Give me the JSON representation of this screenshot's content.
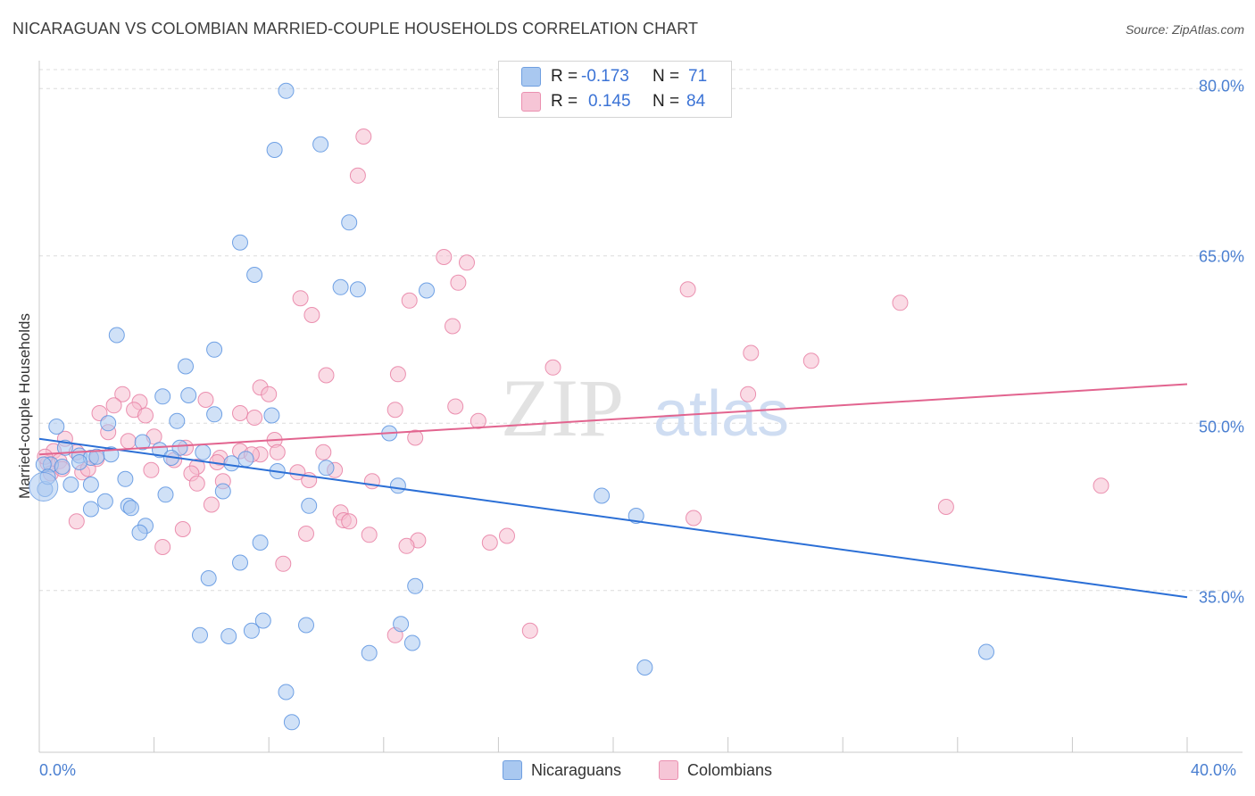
{
  "header": {
    "title": "NICARAGUAN VS COLOMBIAN MARRIED-COUPLE HOUSEHOLDS CORRELATION CHART",
    "source": "Source: ZipAtlas.com"
  },
  "watermark": {
    "zip": "ZIP",
    "atlas": "atlas"
  },
  "colors": {
    "blue_fill": "#a9c8f0",
    "blue_stroke": "#5b93e0",
    "blue_line": "#2b6fd6",
    "pink_fill": "#f6bdd0",
    "pink_stroke": "#e87fa3",
    "pink_line": "#e2648f",
    "axis_label": "#4a7fd1",
    "grid": "#dcdcdc"
  },
  "legend": {
    "rows": [
      {
        "r_label": "R =",
        "r_value": "-0.173",
        "n_label": "N =",
        "n_value": "71"
      },
      {
        "r_label": "R =",
        "r_value": "0.145",
        "n_label": "N =",
        "n_value": "84"
      }
    ]
  },
  "bottom_legend": {
    "series1": "Nicaraguans",
    "series2": "Colombians"
  },
  "chart_data": {
    "type": "scatter",
    "title": "NICARAGUAN VS COLOMBIAN MARRIED-COUPLE HOUSEHOLDS CORRELATION CHART",
    "xlabel": "",
    "ylabel": "Married-couple Households",
    "xlim": [
      0,
      40
    ],
    "ylim": [
      20.5,
      82.5
    ],
    "x_tick_labels": {
      "min": "0.0%",
      "max": "40.0%"
    },
    "y_ticks": [
      {
        "value": 35,
        "label": "35.0%"
      },
      {
        "value": 50,
        "label": "50.0%"
      },
      {
        "value": 65,
        "label": "65.0%"
      },
      {
        "value": 80,
        "label": "80.0%"
      }
    ],
    "x_minor_ticks": [
      4,
      8,
      12,
      16,
      20,
      24,
      28,
      32,
      36,
      40
    ],
    "grid": true,
    "series": [
      {
        "name": "Nicaraguans",
        "r": -0.173,
        "n": 71,
        "trend": {
          "x": [
            0,
            40
          ],
          "y": [
            48.6,
            34.4
          ]
        },
        "points": [
          [
            8.6,
            79.8
          ],
          [
            8.2,
            74.5
          ],
          [
            9.8,
            75.0
          ],
          [
            10.8,
            68.0
          ],
          [
            7.0,
            66.2
          ],
          [
            7.5,
            63.3
          ],
          [
            10.5,
            62.2
          ],
          [
            11.1,
            62.0
          ],
          [
            13.5,
            61.9
          ],
          [
            2.7,
            57.9
          ],
          [
            6.1,
            56.6
          ],
          [
            5.1,
            55.1
          ],
          [
            5.2,
            52.5
          ],
          [
            4.3,
            52.4
          ],
          [
            6.1,
            50.8
          ],
          [
            4.8,
            50.2
          ],
          [
            8.1,
            50.7
          ],
          [
            0.6,
            49.7
          ],
          [
            12.2,
            49.1
          ],
          [
            2.4,
            50.0
          ],
          [
            3.6,
            48.3
          ],
          [
            4.2,
            47.6
          ],
          [
            4.9,
            47.8
          ],
          [
            5.7,
            47.4
          ],
          [
            0.9,
            47.8
          ],
          [
            1.4,
            47.1
          ],
          [
            2.5,
            47.2
          ],
          [
            1.8,
            46.9
          ],
          [
            4.6,
            46.9
          ],
          [
            6.7,
            46.4
          ],
          [
            7.2,
            46.8
          ],
          [
            0.4,
            46.3
          ],
          [
            0.8,
            46.1
          ],
          [
            1.4,
            46.5
          ],
          [
            8.3,
            45.7
          ],
          [
            3.0,
            45.0
          ],
          [
            1.1,
            44.5
          ],
          [
            1.8,
            44.5
          ],
          [
            12.5,
            44.4
          ],
          [
            0.2,
            44.1
          ],
          [
            4.4,
            43.6
          ],
          [
            6.4,
            43.9
          ],
          [
            2.3,
            43.0
          ],
          [
            3.1,
            42.6
          ],
          [
            3.2,
            42.4
          ],
          [
            9.4,
            42.6
          ],
          [
            1.8,
            42.3
          ],
          [
            19.6,
            43.5
          ],
          [
            20.8,
            41.7
          ],
          [
            3.7,
            40.8
          ],
          [
            3.5,
            40.2
          ],
          [
            7.7,
            39.3
          ],
          [
            5.9,
            36.1
          ],
          [
            7.0,
            37.5
          ],
          [
            13.1,
            35.4
          ],
          [
            7.8,
            32.3
          ],
          [
            7.4,
            31.4
          ],
          [
            9.3,
            31.9
          ],
          [
            12.6,
            32.0
          ],
          [
            5.6,
            31.0
          ],
          [
            6.6,
            30.9
          ],
          [
            13.0,
            30.3
          ],
          [
            11.5,
            29.4
          ],
          [
            21.1,
            28.1
          ],
          [
            33.0,
            29.5
          ],
          [
            8.6,
            25.9
          ],
          [
            8.8,
            23.2
          ],
          [
            0.15,
            46.3
          ],
          [
            0.3,
            45.2
          ],
          [
            10.0,
            46.0
          ],
          [
            2.0,
            47.0
          ]
        ]
      },
      {
        "name": "Colombians",
        "r": 0.145,
        "n": 84,
        "trend": {
          "x": [
            0,
            40
          ],
          "y": [
            47.2,
            53.5
          ]
        },
        "points": [
          [
            11.3,
            75.7
          ],
          [
            11.1,
            72.2
          ],
          [
            14.1,
            64.9
          ],
          [
            14.9,
            64.4
          ],
          [
            14.6,
            62.6
          ],
          [
            22.6,
            62.0
          ],
          [
            30.0,
            60.8
          ],
          [
            9.1,
            61.2
          ],
          [
            12.9,
            61.0
          ],
          [
            9.5,
            59.7
          ],
          [
            14.4,
            58.7
          ],
          [
            24.8,
            56.3
          ],
          [
            26.9,
            55.6
          ],
          [
            17.9,
            55.0
          ],
          [
            10.0,
            54.3
          ],
          [
            12.5,
            54.4
          ],
          [
            7.7,
            53.2
          ],
          [
            8.0,
            52.6
          ],
          [
            2.9,
            52.6
          ],
          [
            24.7,
            52.6
          ],
          [
            5.8,
            52.1
          ],
          [
            3.5,
            51.9
          ],
          [
            2.6,
            51.6
          ],
          [
            3.3,
            51.2
          ],
          [
            12.4,
            51.2
          ],
          [
            14.5,
            51.5
          ],
          [
            2.1,
            50.9
          ],
          [
            7.0,
            50.9
          ],
          [
            7.5,
            50.5
          ],
          [
            3.7,
            50.7
          ],
          [
            15.3,
            50.2
          ],
          [
            2.4,
            49.2
          ],
          [
            0.9,
            48.6
          ],
          [
            13.1,
            48.7
          ],
          [
            4.0,
            48.8
          ],
          [
            3.1,
            48.4
          ],
          [
            8.2,
            48.5
          ],
          [
            0.5,
            47.5
          ],
          [
            1.3,
            47.4
          ],
          [
            5.1,
            47.8
          ],
          [
            7.7,
            47.2
          ],
          [
            9.9,
            47.4
          ],
          [
            7.0,
            47.5
          ],
          [
            7.4,
            47.2
          ],
          [
            8.3,
            47.4
          ],
          [
            6.3,
            46.9
          ],
          [
            6.2,
            46.5
          ],
          [
            0.7,
            46.6
          ],
          [
            2.0,
            46.8
          ],
          [
            4.7,
            46.7
          ],
          [
            0.3,
            46.4
          ],
          [
            5.5,
            46.1
          ],
          [
            3.9,
            45.8
          ],
          [
            1.5,
            45.6
          ],
          [
            5.3,
            45.5
          ],
          [
            9.0,
            45.6
          ],
          [
            10.3,
            45.8
          ],
          [
            0.4,
            45.5
          ],
          [
            9.4,
            44.9
          ],
          [
            6.4,
            44.8
          ],
          [
            5.5,
            44.6
          ],
          [
            11.6,
            44.8
          ],
          [
            37.0,
            44.4
          ],
          [
            6.0,
            42.7
          ],
          [
            31.6,
            42.5
          ],
          [
            10.5,
            42.0
          ],
          [
            1.3,
            41.2
          ],
          [
            10.6,
            41.3
          ],
          [
            10.8,
            41.2
          ],
          [
            22.8,
            41.5
          ],
          [
            5.0,
            40.5
          ],
          [
            9.3,
            40.1
          ],
          [
            11.5,
            40.0
          ],
          [
            16.3,
            39.9
          ],
          [
            13.2,
            39.5
          ],
          [
            12.8,
            39.0
          ],
          [
            15.7,
            39.3
          ],
          [
            4.3,
            38.9
          ],
          [
            8.5,
            37.4
          ],
          [
            17.1,
            31.4
          ],
          [
            12.4,
            31.0
          ],
          [
            1.7,
            45.9
          ],
          [
            0.2,
            47.0
          ],
          [
            0.8,
            45.9
          ]
        ]
      }
    ]
  }
}
